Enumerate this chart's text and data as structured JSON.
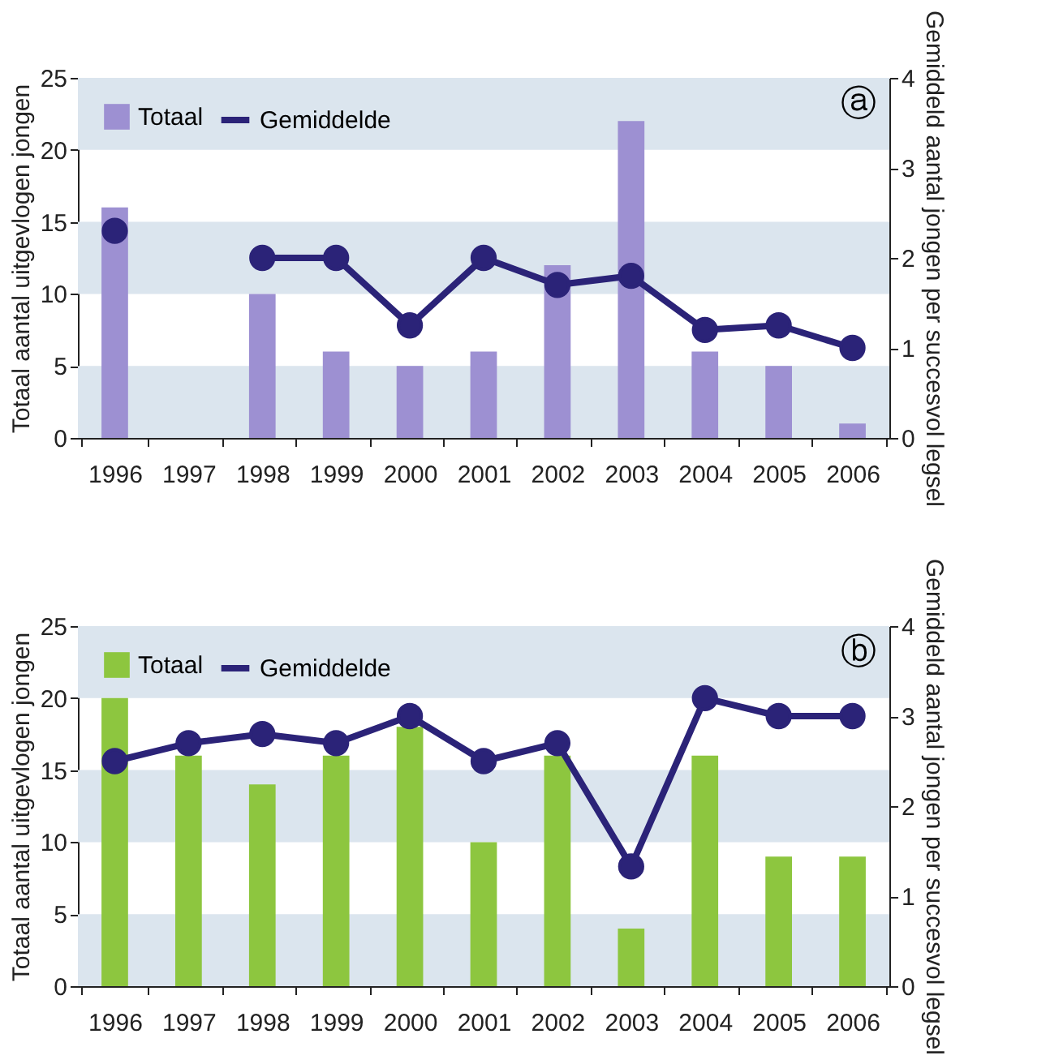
{
  "chart_data": [
    {
      "type": "bar",
      "categories": [
        "1996",
        "1997",
        "1998",
        "1999",
        "2000",
        "2001",
        "2002",
        "2003",
        "2004",
        "2005",
        "2006"
      ],
      "ylabel": "Totaal aantal uitgevlogen jongen",
      "y2label": "Gemiddeld aantal jongen per succesvol legsel",
      "series": [
        {
          "name": "Totaal",
          "color": "#9d90d2",
          "values": [
            16,
            null,
            10,
            6,
            5,
            6,
            12,
            22,
            6,
            5,
            1
          ]
        },
        {
          "name": "Gemiddelde",
          "type": "line",
          "axis": "y2",
          "color": "#2b2378",
          "values": [
            2.3,
            null,
            2.0,
            2.0,
            1.25,
            2.0,
            1.7,
            1.8,
            1.2,
            1.25,
            1.0
          ]
        }
      ],
      "ylim": [
        0,
        25
      ],
      "yticks": [
        0,
        5,
        10,
        15,
        20,
        25
      ],
      "y2lim": [
        0,
        4
      ],
      "y2ticks": [
        0,
        1,
        2,
        3,
        4
      ],
      "bands": [
        {
          "axis": "y",
          "from": 0,
          "to": 5,
          "color": "#dbe5ee"
        },
        {
          "axis": "y",
          "from": 10,
          "to": 15,
          "color": "#dbe5ee"
        },
        {
          "axis": "y",
          "from": 20,
          "to": 25,
          "color": "#dbe5ee"
        }
      ],
      "annotations": [
        "ⓐ"
      ],
      "legend": "top left",
      "marker": "circle",
      "grid": false
    },
    {
      "type": "bar",
      "categories": [
        "1996",
        "1997",
        "1998",
        "1999",
        "2000",
        "2001",
        "2002",
        "2003",
        "2004",
        "2005",
        "2006"
      ],
      "ylabel": "Totaal aantal uitgevlogen jongen",
      "y2label": "Gemiddeld aantal jongen per succesvol legsel",
      "series": [
        {
          "name": "Totaal",
          "color": "#8dc63f",
          "values": [
            20,
            16,
            14,
            16,
            18,
            10,
            16,
            4,
            16,
            9,
            9
          ]
        },
        {
          "name": "Gemiddelde",
          "type": "line",
          "axis": "y2",
          "color": "#2b2378",
          "values": [
            2.5,
            2.7,
            2.8,
            2.7,
            3.0,
            2.5,
            2.7,
            1.33,
            3.2,
            3.0,
            3.0
          ]
        }
      ],
      "ylim": [
        0,
        25
      ],
      "yticks": [
        0,
        5,
        10,
        15,
        20,
        25
      ],
      "y2lim": [
        0,
        4
      ],
      "y2ticks": [
        0,
        1,
        2,
        3,
        4
      ],
      "bands": [
        {
          "axis": "y",
          "from": 0,
          "to": 5,
          "color": "#dbe5ee"
        },
        {
          "axis": "y",
          "from": 10,
          "to": 15,
          "color": "#dbe5ee"
        },
        {
          "axis": "y",
          "from": 20,
          "to": 25,
          "color": "#dbe5ee"
        }
      ],
      "annotations": [
        "ⓑ"
      ],
      "legend": "top left",
      "marker": "circle",
      "grid": false
    }
  ]
}
